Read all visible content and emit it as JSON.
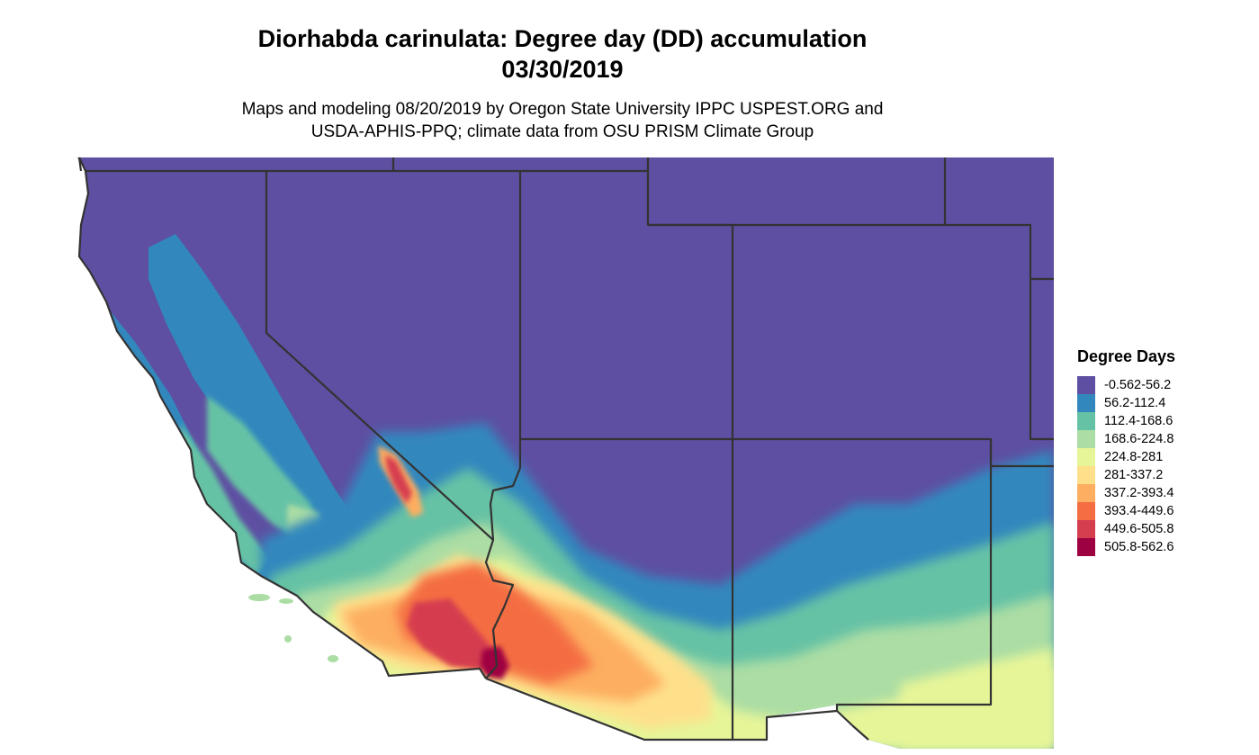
{
  "title": {
    "line1": "Diorhabda carinulata: Degree day (DD) accumulation",
    "line2": "03/30/2019"
  },
  "subtitle": {
    "line1": "Maps and modeling 08/20/2019 by Oregon State University IPPC USPEST.ORG and",
    "line2": "USDA-APHIS-PPQ; climate data from OSU PRISM Climate Group"
  },
  "legend": {
    "title": "Degree Days",
    "items": [
      {
        "label": "-0.562-56.2",
        "color": "#5e4fa2"
      },
      {
        "label": "56.2-112.4",
        "color": "#3288bd"
      },
      {
        "label": "112.4-168.6",
        "color": "#66c2a5"
      },
      {
        "label": "168.6-224.8",
        "color": "#abdda4"
      },
      {
        "label": "224.8-281",
        "color": "#e6f598"
      },
      {
        "label": "281-337.2",
        "color": "#fee08b"
      },
      {
        "label": "337.2-393.4",
        "color": "#fdae61"
      },
      {
        "label": "393.4-449.6",
        "color": "#f46d43"
      },
      {
        "label": "449.6-505.8",
        "color": "#d53e4f"
      },
      {
        "label": "505.8-562.6",
        "color": "#9e0142"
      }
    ]
  },
  "border_color": "#333333"
}
